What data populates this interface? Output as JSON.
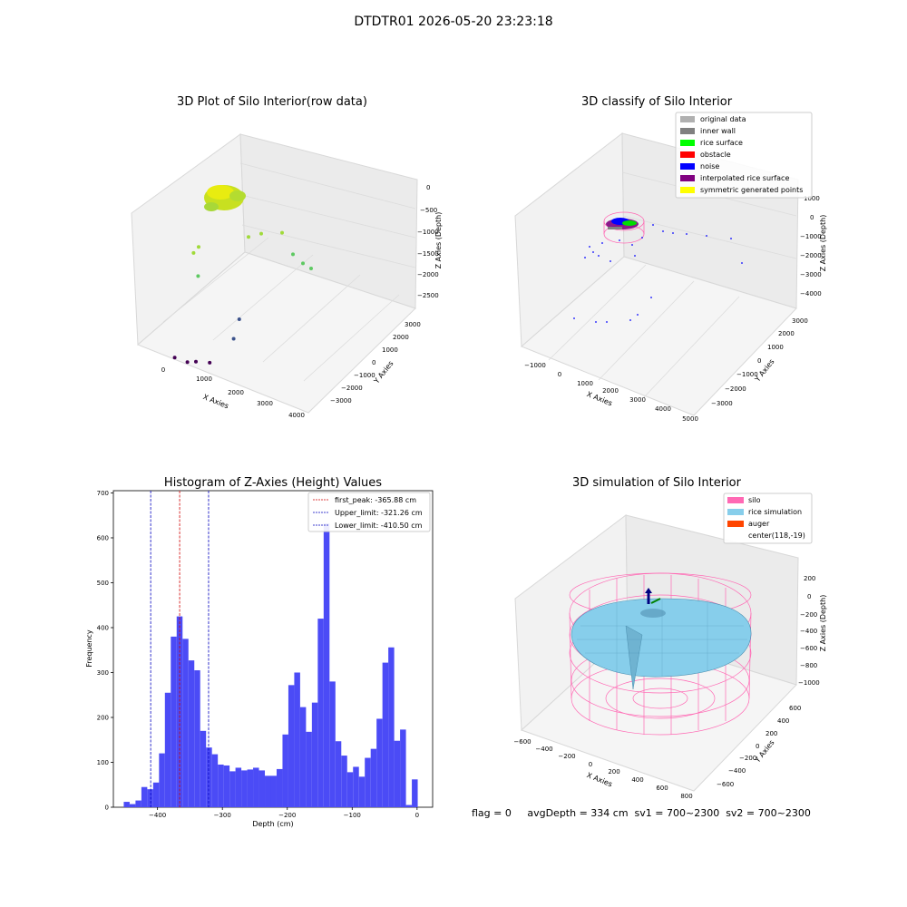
{
  "figure": {
    "suptitle": "DTDTR01 2026-05-20 23:23:18",
    "status_line": "flag = 0     avgDepth = 334 cm  sv1 = 700~2300  sv2 = 700~2300"
  },
  "colors": {
    "histogram_bar": "#4b4bf6",
    "first_peak_line": "#d00000",
    "limit_lines": "#0000c0",
    "silo": "#ff69b4",
    "rice_simulation": "#87ceeb",
    "auger": "#ff4500"
  },
  "chart_data": [
    {
      "type": "scatter3d",
      "title": "3D Plot of Silo Interior(row data)",
      "xlabel": "X Axies",
      "ylabel": "Y Axies",
      "zlabel": "Z Axies (Depth)",
      "x_ticks": [
        "0",
        "1000",
        "2000",
        "3000",
        "4000"
      ],
      "y_ticks": [
        "3000",
        "2000",
        "1000",
        "0",
        "−1000",
        "−2000",
        "−3000"
      ],
      "z_ticks": [
        "0",
        "−500",
        "−1000",
        "−1500",
        "−2000",
        "−2500"
      ],
      "points": [
        {
          "x": 200,
          "y": -1000,
          "z": -2850
        },
        {
          "x": 700,
          "y": -1000,
          "z": -2850
        },
        {
          "x": 1100,
          "y": -1100,
          "z": -2750
        },
        {
          "x": 1900,
          "y": -1500,
          "z": -2550
        },
        {
          "x": 2200,
          "y": -500,
          "z": -2250
        },
        {
          "x": 2100,
          "y": 0,
          "z": -2000
        },
        {
          "x": 3000,
          "y": 3000,
          "z": -1500
        },
        {
          "x": 3000,
          "y": 2500,
          "z": -1300
        },
        {
          "x": 2800,
          "y": 2200,
          "z": -1100
        },
        {
          "x": 800,
          "y": -500,
          "z": -1300
        },
        {
          "x": 300,
          "y": 0,
          "z": -1050
        },
        {
          "x": 500,
          "y": 0,
          "z": -900
        },
        {
          "x": 1500,
          "y": 1500,
          "z": -850
        },
        {
          "x": 2000,
          "y": 1500,
          "z": -700
        },
        {
          "x": 2500,
          "y": 2000,
          "z": -700
        }
      ],
      "colormap": "viridis"
    },
    {
      "type": "scatter3d",
      "title": "3D classify of Silo Interior",
      "xlabel": "X Axies",
      "ylabel": "Y Axies",
      "zlabel": "Z Axies (Depth)",
      "x_ticks": [
        "−1000",
        "0",
        "1000",
        "2000",
        "3000",
        "4000",
        "5000"
      ],
      "y_ticks": [
        "3000",
        "2000",
        "1000",
        "0",
        "−1000",
        "−2000",
        "−3000"
      ],
      "z_ticks": [
        "1000",
        "0",
        "−1000",
        "−2000",
        "−3000",
        "−4000"
      ],
      "legend": [
        {
          "label": "original data",
          "color": "#b0b0b0"
        },
        {
          "label": "inner wall",
          "color": "#808080"
        },
        {
          "label": "rice surface",
          "color": "#00ff00"
        },
        {
          "label": "obstacle",
          "color": "#ff0000"
        },
        {
          "label": "noise",
          "color": "#0000ff"
        },
        {
          "label": "interpolated rice surface",
          "color": "#800080"
        },
        {
          "label": "symmetric generated points",
          "color": "#ffff00"
        }
      ]
    },
    {
      "type": "bar",
      "title": "Histogram of Z-Axies (Height) Values",
      "xlabel": "Depth (cm)",
      "ylabel": "Frequency",
      "xlim": [
        -468,
        24
      ],
      "ylim": [
        0,
        705
      ],
      "x_ticks": [
        -400,
        -300,
        -200,
        -100,
        0
      ],
      "x_tick_labels": [
        "−400",
        "−300",
        "−200",
        "−100",
        "0"
      ],
      "y_ticks": [
        0,
        100,
        200,
        300,
        400,
        500,
        600,
        700
      ],
      "y_tick_labels": [
        "0",
        "100",
        "200",
        "300",
        "400",
        "500",
        "600",
        "700"
      ],
      "bin_start": -452,
      "bin_width": 9.06,
      "values": [
        12,
        7,
        15,
        45,
        40,
        55,
        120,
        255,
        380,
        425,
        375,
        327,
        305,
        170,
        133,
        118,
        95,
        93,
        80,
        88,
        82,
        84,
        88,
        82,
        70,
        70,
        85,
        162,
        272,
        300,
        223,
        168,
        233,
        420,
        632,
        280,
        147,
        115,
        78,
        90,
        68,
        110,
        130,
        197,
        322,
        356,
        148,
        173,
        5,
        62
      ],
      "vlines": [
        {
          "label": "first_peak: -365.88 cm",
          "x": -365.88,
          "color": "#d00000"
        },
        {
          "label": "Upper_limit: -321.26 cm",
          "x": -321.26,
          "color": "#0000c0"
        },
        {
          "label": "Lower_limit: -410.50 cm",
          "x": -410.5,
          "color": "#0000c0"
        }
      ]
    },
    {
      "type": "surface3d",
      "title": "3D simulation of Silo Interior",
      "xlabel": "X Axies",
      "ylabel": "Y Axies",
      "zlabel": "Z Axies (Depth)",
      "x_ticks": [
        "−600",
        "−400",
        "−200",
        "0",
        "200",
        "400",
        "600",
        "800"
      ],
      "y_ticks": [
        "600",
        "400",
        "200",
        "0",
        "−200",
        "−400",
        "−600"
      ],
      "z_ticks": [
        "200",
        "0",
        "−200",
        "−400",
        "−600",
        "−800",
        "−1000"
      ],
      "legend": [
        {
          "label": "silo",
          "color": "#ff69b4"
        },
        {
          "label": "rice simulation",
          "color": "#87ceeb"
        },
        {
          "label": "auger",
          "color": "#ff4500"
        },
        {
          "label": "center(118,-19)",
          "color": ""
        }
      ]
    }
  ]
}
